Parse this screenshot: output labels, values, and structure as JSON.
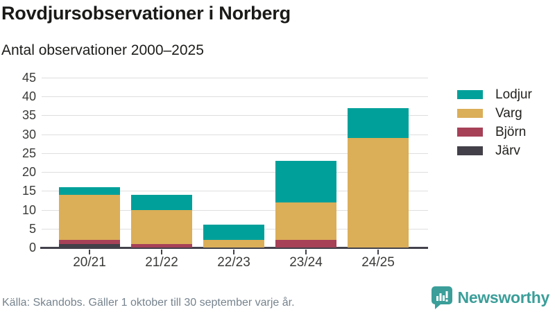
{
  "header": {
    "title": "Rovdjursobservationer i Norberg",
    "subtitle": "Antal observationer 2000–2025"
  },
  "chart_data": {
    "type": "bar",
    "stacked": true,
    "title": "Rovdjursobservationer i Norberg",
    "subtitle": "Antal observationer 2000–2025",
    "categories": [
      "20/21",
      "21/22",
      "22/23",
      "23/24",
      "24/25"
    ],
    "series": [
      {
        "name": "Järv",
        "color": "#434049",
        "values": [
          1,
          0,
          0,
          0,
          0
        ]
      },
      {
        "name": "Björn",
        "color": "#a64158",
        "values": [
          1,
          1,
          0,
          2,
          0
        ]
      },
      {
        "name": "Varg",
        "color": "#dbae58",
        "values": [
          12,
          9,
          2,
          10,
          29
        ]
      },
      {
        "name": "Lodjur",
        "color": "#00a09a",
        "values": [
          2,
          4,
          4,
          11,
          8
        ]
      }
    ],
    "totals": [
      16,
      14,
      6,
      23,
      37
    ],
    "legend_order": [
      "Lodjur",
      "Varg",
      "Björn",
      "Järv"
    ],
    "legend_position": "right",
    "y_ticks": [
      0,
      5,
      10,
      15,
      20,
      25,
      30,
      35,
      40,
      45
    ],
    "ylim": [
      0,
      45
    ],
    "xlabel": "",
    "ylabel": "",
    "grid": true
  },
  "footer": {
    "source": "Källa: Skandobs. Gäller 1 oktober till 30 september varje år."
  },
  "branding": {
    "name": "Newsworthy",
    "logo_icon": "bar-chart-speech-bubble",
    "accent_color": "#3b9e99"
  }
}
